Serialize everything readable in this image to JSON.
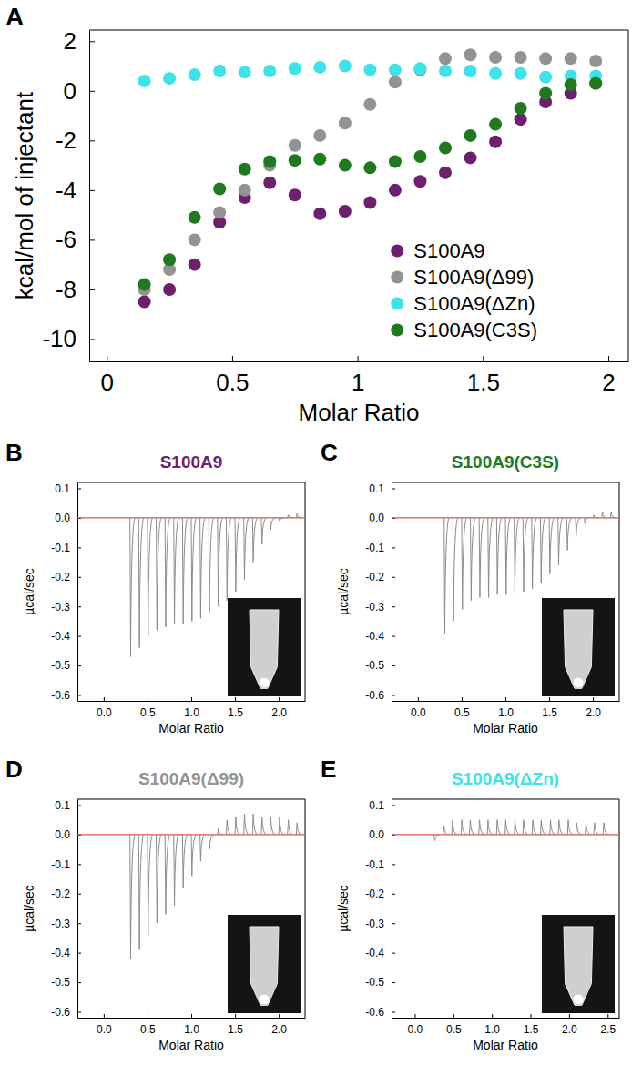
{
  "chart_data": [
    {
      "type": "scatter",
      "label": "A",
      "xlabel": "Molar Ratio",
      "ylabel": "kcal/mol of injectant",
      "xlim": [
        -0.07,
        2.08
      ],
      "ylim": [
        -10.9,
        2.45
      ],
      "xticks": [
        0,
        0.5,
        1,
        1.5,
        2
      ],
      "yticks": [
        -10,
        -8,
        -6,
        -4,
        -2,
        0,
        2
      ],
      "legend": "bottom-right",
      "marker": "circle",
      "series": [
        {
          "name": "S100A9",
          "color": "#6e1f6e",
          "x": [
            0.15,
            0.25,
            0.35,
            0.45,
            0.55,
            0.65,
            0.75,
            0.85,
            0.95,
            1.05,
            1.15,
            1.25,
            1.35,
            1.45,
            1.55,
            1.65,
            1.75,
            1.85,
            1.95
          ],
          "values": [
            -8.5,
            -8.0,
            -7.0,
            -5.3,
            -4.3,
            -3.7,
            -4.2,
            -4.95,
            -4.85,
            -4.5,
            -4.0,
            -3.65,
            -3.3,
            -2.7,
            -2.05,
            -1.15,
            -0.45,
            -0.1,
            0.3
          ]
        },
        {
          "name": "S100A9(Δ99)",
          "color": "#939393",
          "x": [
            0.15,
            0.25,
            0.35,
            0.45,
            0.55,
            0.65,
            0.75,
            0.85,
            0.95,
            1.05,
            1.15,
            1.25,
            1.35,
            1.45,
            1.55,
            1.65,
            1.75,
            1.85,
            1.95
          ],
          "values": [
            -8.0,
            -7.2,
            -6.0,
            -4.9,
            -4.0,
            -3.0,
            -2.2,
            -1.8,
            -1.3,
            -0.55,
            0.35,
            0.85,
            1.3,
            1.45,
            1.35,
            1.35,
            1.3,
            1.3,
            1.2
          ]
        },
        {
          "name": "S100A9(ΔZn)",
          "color": "#3de3e8",
          "x": [
            0.15,
            0.25,
            0.35,
            0.45,
            0.55,
            0.65,
            0.75,
            0.85,
            0.95,
            1.05,
            1.15,
            1.25,
            1.35,
            1.45,
            1.55,
            1.65,
            1.75,
            1.85,
            1.95
          ],
          "values": [
            0.4,
            0.5,
            0.65,
            0.8,
            0.75,
            0.8,
            0.9,
            0.95,
            1.0,
            0.85,
            0.85,
            0.9,
            0.8,
            0.8,
            0.7,
            0.7,
            0.55,
            0.6,
            0.6
          ]
        },
        {
          "name": "S100A9(C3S)",
          "color": "#1f7a1f",
          "x": [
            0.15,
            0.25,
            0.35,
            0.45,
            0.55,
            0.65,
            0.75,
            0.85,
            0.95,
            1.05,
            1.15,
            1.25,
            1.35,
            1.45,
            1.55,
            1.65,
            1.75,
            1.85,
            1.95
          ],
          "values": [
            -7.8,
            -6.8,
            -5.1,
            -3.95,
            -3.15,
            -2.85,
            -2.8,
            -2.75,
            -3.0,
            -3.1,
            -2.85,
            -2.65,
            -2.3,
            -1.8,
            -1.35,
            -0.7,
            -0.1,
            0.25,
            0.3
          ]
        }
      ]
    },
    {
      "type": "thermogram",
      "label": "B",
      "title": "S100A9",
      "color": "#6e1f6e",
      "xlabel": "Molar Ratio",
      "ylabel": "µcal/sec",
      "xlim": [
        -0.3,
        2.3
      ],
      "ylim": [
        -0.62,
        0.12
      ],
      "baseline": 0,
      "xticks": [
        {
          "value": 0,
          "label": "0.0"
        },
        {
          "value": 0.5,
          "label": "0.5"
        },
        {
          "value": 1,
          "label": "1.0"
        },
        {
          "value": 1.5,
          "label": "1.5"
        },
        {
          "value": 2,
          "label": "2.0"
        }
      ],
      "yticks": [
        {
          "value": -0.6,
          "label": "-0.6"
        },
        {
          "value": -0.5,
          "label": "-0.5"
        },
        {
          "value": -0.4,
          "label": "-0.4"
        },
        {
          "value": -0.3,
          "label": "-0.3"
        },
        {
          "value": -0.2,
          "label": "-0.2"
        },
        {
          "value": -0.1,
          "label": "-0.1"
        },
        {
          "value": 0,
          "label": "0.0"
        },
        0.1
      ],
      "series": [
        {
          "color": "#8c8c8c",
          "x": [
            0.3,
            0.4,
            0.5,
            0.6,
            0.7,
            0.8,
            0.9,
            1.0,
            1.1,
            1.2,
            1.3,
            1.4,
            1.5,
            1.6,
            1.7,
            1.8,
            1.9,
            2.0,
            2.1,
            2.2
          ],
          "values": [
            -0.47,
            -0.44,
            -0.4,
            -0.38,
            -0.37,
            -0.36,
            -0.36,
            -0.35,
            -0.34,
            -0.32,
            -0.3,
            -0.28,
            -0.25,
            -0.21,
            -0.15,
            -0.09,
            -0.04,
            -0.01,
            0.01,
            0.015
          ]
        }
      ]
    },
    {
      "type": "thermogram",
      "label": "C",
      "title": "S100A9(C3S)",
      "color": "#1f7a1f",
      "xlabel": "Molar Ratio",
      "ylabel": "µcal/sec",
      "xlim": [
        -0.3,
        2.3
      ],
      "ylim": [
        -0.62,
        0.12
      ],
      "baseline": 0,
      "xticks": [
        {
          "value": 0,
          "label": "0.0"
        },
        {
          "value": 0.5,
          "label": "0.5"
        },
        {
          "value": 1,
          "label": "1.0"
        },
        {
          "value": 1.5,
          "label": "1.5"
        },
        {
          "value": 2,
          "label": "2.0"
        }
      ],
      "yticks": [
        {
          "value": -0.6,
          "label": "-0.6"
        },
        {
          "value": -0.5,
          "label": "-0.5"
        },
        {
          "value": -0.4,
          "label": "-0.4"
        },
        {
          "value": -0.3,
          "label": "-0.3"
        },
        {
          "value": -0.2,
          "label": "-0.2"
        },
        {
          "value": -0.1,
          "label": "-0.1"
        },
        {
          "value": 0,
          "label": "0.0"
        },
        0.1
      ],
      "series": [
        {
          "color": "#8c8c8c",
          "x": [
            0.3,
            0.4,
            0.5,
            0.6,
            0.7,
            0.8,
            0.9,
            1.0,
            1.1,
            1.2,
            1.3,
            1.4,
            1.5,
            1.6,
            1.7,
            1.8,
            1.9,
            2.0,
            2.1,
            2.2
          ],
          "values": [
            -0.39,
            -0.35,
            -0.31,
            -0.28,
            -0.27,
            -0.27,
            -0.26,
            -0.26,
            -0.26,
            -0.25,
            -0.24,
            -0.22,
            -0.19,
            -0.16,
            -0.11,
            -0.06,
            -0.02,
            0.01,
            0.02,
            0.02
          ]
        }
      ]
    },
    {
      "type": "thermogram",
      "label": "D",
      "title": "S100A9(Δ99)",
      "color": "#939393",
      "xlabel": "Molar Ratio",
      "ylabel": "µcal/sec",
      "xlim": [
        -0.3,
        2.3
      ],
      "ylim": [
        -0.62,
        0.12
      ],
      "baseline": 0,
      "xticks": [
        {
          "value": 0,
          "label": "0.0"
        },
        {
          "value": 0.5,
          "label": "0.5"
        },
        {
          "value": 1,
          "label": "1.0"
        },
        {
          "value": 1.5,
          "label": "1.5"
        },
        {
          "value": 2,
          "label": "2.0"
        }
      ],
      "yticks": [
        {
          "value": -0.6,
          "label": "-0.6"
        },
        {
          "value": -0.5,
          "label": "-0.5"
        },
        {
          "value": -0.4,
          "label": "-0.4"
        },
        {
          "value": -0.3,
          "label": "-0.3"
        },
        {
          "value": -0.2,
          "label": "-0.2"
        },
        {
          "value": -0.1,
          "label": "-0.1"
        },
        {
          "value": 0,
          "label": "0.0"
        },
        0.1
      ],
      "series": [
        {
          "color": "#8c8c8c",
          "x": [
            0.3,
            0.4,
            0.5,
            0.6,
            0.7,
            0.8,
            0.9,
            1.0,
            1.1,
            1.2,
            1.3,
            1.4,
            1.5,
            1.6,
            1.7,
            1.8,
            1.9,
            2.0,
            2.1,
            2.2
          ],
          "values": [
            -0.42,
            -0.39,
            -0.34,
            -0.3,
            -0.27,
            -0.24,
            -0.18,
            -0.14,
            -0.09,
            -0.05,
            0.02,
            0.05,
            0.06,
            0.07,
            0.07,
            0.06,
            0.06,
            0.06,
            0.05,
            0.04
          ]
        }
      ]
    },
    {
      "type": "thermogram",
      "label": "E",
      "title": "S100A9(ΔZn)",
      "color": "#3de3e8",
      "xlabel": "Molar Ratio",
      "ylabel": "µcal/sec",
      "xlim": [
        -0.3,
        2.65
      ],
      "ylim": [
        -0.62,
        0.12
      ],
      "baseline": 0,
      "xticks": [
        {
          "value": 0,
          "label": "0.0"
        },
        {
          "value": 0.5,
          "label": "0.5"
        },
        {
          "value": 1,
          "label": "1.0"
        },
        {
          "value": 1.5,
          "label": "1.5"
        },
        {
          "value": 2,
          "label": "2.0"
        },
        {
          "value": 2.5,
          "label": "2.5"
        }
      ],
      "yticks": [
        {
          "value": -0.6,
          "label": "-0.6"
        },
        {
          "value": -0.5,
          "label": "-0.5"
        },
        {
          "value": -0.4,
          "label": "-0.4"
        },
        {
          "value": -0.3,
          "label": "-0.3"
        },
        {
          "value": -0.2,
          "label": "-0.2"
        },
        {
          "value": -0.1,
          "label": "-0.1"
        },
        {
          "value": 0,
          "label": "0.0"
        },
        0.1
      ],
      "series": [
        {
          "color": "#8c8c8c",
          "x": [
            0.25,
            0.37,
            0.48,
            0.6,
            0.71,
            0.83,
            0.94,
            1.06,
            1.17,
            1.29,
            1.4,
            1.52,
            1.63,
            1.75,
            1.86,
            1.98,
            2.09,
            2.21,
            2.32,
            2.44
          ],
          "values": [
            -0.02,
            0.03,
            0.05,
            0.05,
            0.05,
            0.05,
            0.05,
            0.05,
            0.05,
            0.05,
            0.05,
            0.05,
            0.05,
            0.05,
            0.05,
            0.05,
            0.04,
            0.04,
            0.04,
            0.04
          ]
        }
      ]
    }
  ]
}
